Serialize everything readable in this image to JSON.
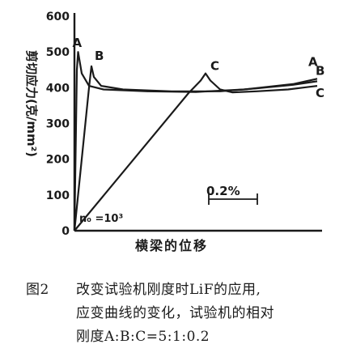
{
  "chart_data": {
    "type": "line",
    "ylabel": "剪切应力(克/mm²)",
    "xlabel": "横梁的位移",
    "yticks": [
      0,
      100,
      200,
      300,
      400,
      500,
      600
    ],
    "ylim": [
      0,
      600
    ],
    "xlim": [
      0,
      100
    ],
    "grid": false,
    "scale_bar_label": "0.2%",
    "annotation": "n₀ =10³",
    "series": [
      {
        "name": "A",
        "points": [
          [
            0,
            0
          ],
          [
            1,
            450
          ],
          [
            1.5,
            500
          ],
          [
            3,
            440
          ],
          [
            6,
            405
          ],
          [
            12,
            395
          ],
          [
            30,
            390
          ],
          [
            50,
            388
          ],
          [
            70,
            395
          ],
          [
            90,
            410
          ],
          [
            100,
            425
          ]
        ]
      },
      {
        "name": "B",
        "points": [
          [
            0,
            0
          ],
          [
            6,
            400
          ],
          [
            7,
            460
          ],
          [
            8,
            430
          ],
          [
            11,
            405
          ],
          [
            20,
            395
          ],
          [
            40,
            390
          ],
          [
            60,
            390
          ],
          [
            75,
            398
          ],
          [
            90,
            408
          ],
          [
            100,
            418
          ]
        ]
      },
      {
        "name": "C",
        "points": [
          [
            0,
            0
          ],
          [
            47,
            385
          ],
          [
            52,
            420
          ],
          [
            54,
            440
          ],
          [
            56,
            420
          ],
          [
            60,
            395
          ],
          [
            65,
            387
          ],
          [
            75,
            390
          ],
          [
            88,
            395
          ],
          [
            100,
            405
          ]
        ]
      }
    ]
  },
  "caption": {
    "number": "图2",
    "lines": [
      "改变试验机刚度时LiF的应用,",
      "应变曲线的变化，试验机的相对",
      "刚度A:B:C=5:1:0.2"
    ]
  },
  "colors": {
    "ink": "#1a1a1a",
    "background": "#ffffff"
  }
}
